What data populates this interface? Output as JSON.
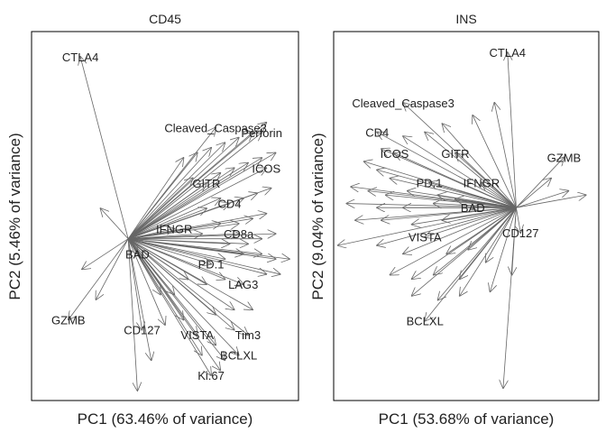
{
  "chart_data": [
    {
      "type": "scatter",
      "variant": "biplot-arrows",
      "title": "CD45",
      "xlabel": "PC1 (63.46% of variance)",
      "ylabel": "PC2 (5.46% of variance)",
      "axes_drawn": false,
      "grid": false,
      "origin": [
        0,
        0
      ],
      "xlim": [
        -1.05,
        1.85
      ],
      "ylim": [
        -1.6,
        2.05
      ],
      "arrow_color": "#666666",
      "labeled_loadings": [
        {
          "label": "CTLA4",
          "x": -0.52,
          "y": 1.8
        },
        {
          "label": "Cleaved_Caspase3",
          "x": 0.95,
          "y": 1.1
        },
        {
          "label": "Perforin",
          "x": 1.45,
          "y": 1.05
        },
        {
          "label": "ICOS",
          "x": 1.5,
          "y": 0.7
        },
        {
          "label": "GITR",
          "x": 0.85,
          "y": 0.55
        },
        {
          "label": "CD4",
          "x": 1.1,
          "y": 0.35
        },
        {
          "label": "IFNGR",
          "x": 0.5,
          "y": 0.1
        },
        {
          "label": "CD8a",
          "x": 1.2,
          "y": 0.05
        },
        {
          "label": "BAD",
          "x": 0.1,
          "y": -0.15
        },
        {
          "label": "PD.1",
          "x": 0.9,
          "y": -0.25
        },
        {
          "label": "LAG3",
          "x": 1.25,
          "y": -0.45
        },
        {
          "label": "CD127",
          "x": 0.15,
          "y": -0.9
        },
        {
          "label": "GZMB",
          "x": -0.65,
          "y": -0.8
        },
        {
          "label": "VISTA",
          "x": 0.75,
          "y": -0.95
        },
        {
          "label": "Tim3",
          "x": 1.3,
          "y": -0.95
        },
        {
          "label": "BCLXL",
          "x": 1.2,
          "y": -1.15
        },
        {
          "label": "Ki.67",
          "x": 0.9,
          "y": -1.35
        }
      ],
      "unlabeled_loadings": [
        {
          "x": 1.5,
          "y": 1.15
        },
        {
          "x": 1.35,
          "y": 1.05
        },
        {
          "x": 1.2,
          "y": 1.0
        },
        {
          "x": 1.05,
          "y": 0.95
        },
        {
          "x": 0.9,
          "y": 0.9
        },
        {
          "x": 0.75,
          "y": 0.85
        },
        {
          "x": 0.6,
          "y": 0.8
        },
        {
          "x": 1.6,
          "y": 0.85
        },
        {
          "x": 1.45,
          "y": 0.8
        },
        {
          "x": 1.3,
          "y": 0.75
        },
        {
          "x": 1.15,
          "y": 0.7
        },
        {
          "x": 1.0,
          "y": 0.65
        },
        {
          "x": 0.7,
          "y": 0.6
        },
        {
          "x": 1.55,
          "y": 0.5
        },
        {
          "x": 1.4,
          "y": 0.45
        },
        {
          "x": 1.25,
          "y": 0.4
        },
        {
          "x": 1.0,
          "y": 0.4
        },
        {
          "x": 0.85,
          "y": 0.3
        },
        {
          "x": 1.5,
          "y": 0.25
        },
        {
          "x": 1.35,
          "y": 0.2
        },
        {
          "x": 1.2,
          "y": 0.15
        },
        {
          "x": 1.0,
          "y": 0.15
        },
        {
          "x": 0.8,
          "y": 0.05
        },
        {
          "x": 1.6,
          "y": 0.05
        },
        {
          "x": 1.45,
          "y": 0.0
        },
        {
          "x": 1.3,
          "y": -0.05
        },
        {
          "x": 1.1,
          "y": -0.05
        },
        {
          "x": 1.75,
          "y": -0.2
        },
        {
          "x": 1.6,
          "y": -0.2
        },
        {
          "x": 1.45,
          "y": -0.15
        },
        {
          "x": 1.25,
          "y": -0.15
        },
        {
          "x": 1.05,
          "y": -0.2
        },
        {
          "x": 1.65,
          "y": -0.35
        },
        {
          "x": 1.5,
          "y": -0.35
        },
        {
          "x": 1.05,
          "y": -0.4
        },
        {
          "x": 0.85,
          "y": -0.45
        },
        {
          "x": 0.65,
          "y": -0.4
        },
        {
          "x": 0.5,
          "y": -0.55
        },
        {
          "x": 0.35,
          "y": -0.55
        },
        {
          "x": 1.35,
          "y": -0.7
        },
        {
          "x": 1.15,
          "y": -0.7
        },
        {
          "x": 0.95,
          "y": -0.75
        },
        {
          "x": 0.6,
          "y": -0.8
        },
        {
          "x": 0.4,
          "y": -0.85
        },
        {
          "x": 1.15,
          "y": -0.9
        },
        {
          "x": 0.95,
          "y": -1.05
        },
        {
          "x": 0.8,
          "y": -1.15
        },
        {
          "x": 1.05,
          "y": -1.2
        },
        {
          "x": 1.0,
          "y": -1.3
        },
        {
          "x": 0.25,
          "y": -1.2
        },
        {
          "x": 0.1,
          "y": -1.5
        },
        {
          "x": -0.35,
          "y": -0.6
        },
        {
          "x": -0.5,
          "y": -0.3
        },
        {
          "x": -0.3,
          "y": 0.3
        }
      ]
    },
    {
      "type": "scatter",
      "variant": "biplot-arrows",
      "title": "INS",
      "xlabel": "PC1 (53.68% of variance)",
      "ylabel": "PC2 (9.04% of variance)",
      "axes_drawn": false,
      "grid": false,
      "origin": [
        0,
        0
      ],
      "xlim": [
        -2.1,
        0.95
      ],
      "ylim": [
        -2.3,
        2.1
      ],
      "arrow_color": "#666666",
      "labeled_loadings": [
        {
          "label": "CTLA4",
          "x": -0.1,
          "y": 1.85
        },
        {
          "label": "Cleaved_Caspase3",
          "x": -1.3,
          "y": 1.25
        },
        {
          "label": "CD4",
          "x": -1.6,
          "y": 0.9
        },
        {
          "label": "ICOS",
          "x": -1.4,
          "y": 0.65
        },
        {
          "label": "GITR",
          "x": -0.7,
          "y": 0.65
        },
        {
          "label": "GZMB",
          "x": 0.55,
          "y": 0.6
        },
        {
          "label": "PD.1",
          "x": -1.0,
          "y": 0.3
        },
        {
          "label": "IFNGR",
          "x": -0.4,
          "y": 0.3
        },
        {
          "label": "BAD",
          "x": -0.5,
          "y": 0.0
        },
        {
          "label": "CD127",
          "x": 0.05,
          "y": -0.3
        },
        {
          "label": "VISTA",
          "x": -1.05,
          "y": -0.35
        },
        {
          "label": "BCLXL",
          "x": -1.05,
          "y": -1.35
        }
      ],
      "unlabeled_loadings": [
        {
          "x": 0.6,
          "y": 0.2
        },
        {
          "x": 0.8,
          "y": 0.15
        },
        {
          "x": 0.4,
          "y": 0.35
        },
        {
          "x": -0.25,
          "y": 1.25
        },
        {
          "x": -0.5,
          "y": 1.1
        },
        {
          "x": -0.85,
          "y": 1.0
        },
        {
          "x": -1.05,
          "y": 0.9
        },
        {
          "x": -1.3,
          "y": 0.85
        },
        {
          "x": -1.55,
          "y": 0.7
        },
        {
          "x": -1.75,
          "y": 0.55
        },
        {
          "x": -1.6,
          "y": 0.45
        },
        {
          "x": -1.45,
          "y": 0.35
        },
        {
          "x": -1.9,
          "y": 0.25
        },
        {
          "x": -1.7,
          "y": 0.2
        },
        {
          "x": -1.5,
          "y": 0.15
        },
        {
          "x": -1.25,
          "y": 0.2
        },
        {
          "x": -0.9,
          "y": 0.15
        },
        {
          "x": -1.95,
          "y": 0.05
        },
        {
          "x": -1.6,
          "y": 0.0
        },
        {
          "x": -1.3,
          "y": 0.0
        },
        {
          "x": -0.95,
          "y": 0.05
        },
        {
          "x": -0.7,
          "y": 0.1
        },
        {
          "x": -1.85,
          "y": -0.15
        },
        {
          "x": -1.55,
          "y": -0.15
        },
        {
          "x": -1.2,
          "y": -0.2
        },
        {
          "x": -0.85,
          "y": -0.15
        },
        {
          "x": -2.05,
          "y": -0.45
        },
        {
          "x": -1.6,
          "y": -0.45
        },
        {
          "x": -1.3,
          "y": -0.55
        },
        {
          "x": -0.8,
          "y": -0.55
        },
        {
          "x": -0.55,
          "y": -0.5
        },
        {
          "x": -1.45,
          "y": -0.8
        },
        {
          "x": -1.2,
          "y": -0.85
        },
        {
          "x": -0.95,
          "y": -0.8
        },
        {
          "x": -0.65,
          "y": -0.85
        },
        {
          "x": -1.2,
          "y": -1.05
        },
        {
          "x": -0.9,
          "y": -1.1
        },
        {
          "x": -0.65,
          "y": -1.05
        },
        {
          "x": -0.3,
          "y": -1.0
        },
        {
          "x": -0.35,
          "y": -0.65
        },
        {
          "x": -0.15,
          "y": -2.15
        },
        {
          "x": -0.05,
          "y": -0.8
        }
      ]
    }
  ]
}
